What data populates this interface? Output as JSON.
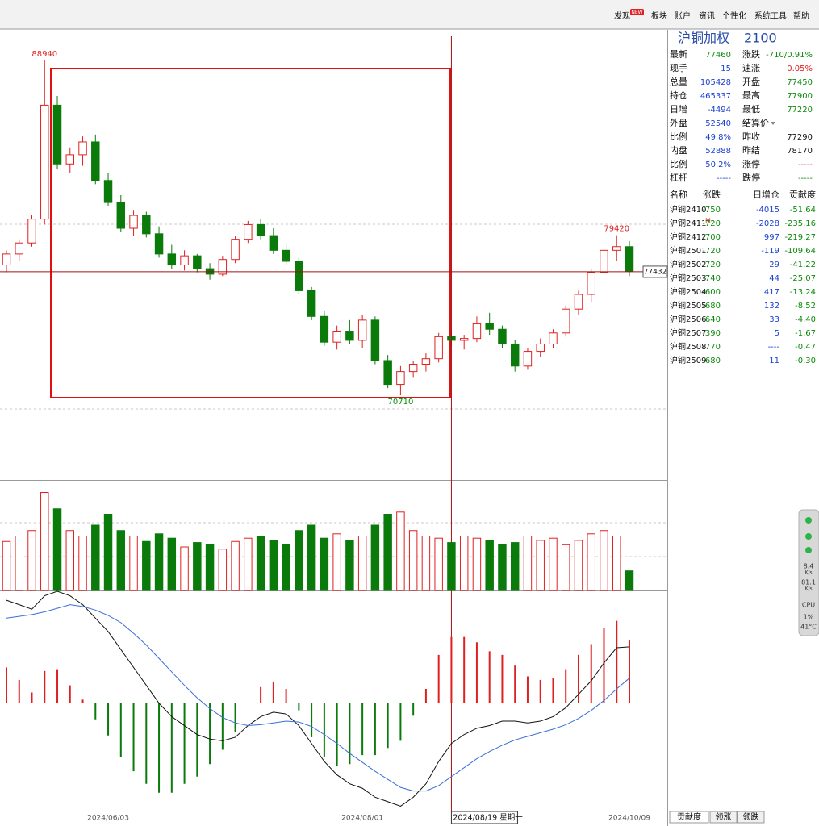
{
  "menu": {
    "items": [
      "发现",
      "板块",
      "账户",
      "资讯",
      "个性化",
      "系统工具",
      "帮助"
    ],
    "badge": "NEW"
  },
  "chart_data": {
    "type": "candlestick",
    "up_color": "#e02020",
    "down_color": "#0a7a0a",
    "ylim": [
      66100,
      90250
    ],
    "candles": [
      [
        77800,
        78600,
        77400,
        78400
      ],
      [
        78400,
        79200,
        78000,
        79000
      ],
      [
        79000,
        80500,
        78800,
        80300
      ],
      [
        80300,
        88940,
        80000,
        86500
      ],
      [
        86500,
        87000,
        83000,
        83300
      ],
      [
        83300,
        84200,
        82800,
        83800
      ],
      [
        83800,
        84800,
        83200,
        84500
      ],
      [
        84500,
        84900,
        82200,
        82400
      ],
      [
        82400,
        82800,
        81000,
        81200
      ],
      [
        81200,
        81600,
        79600,
        79800
      ],
      [
        79800,
        80800,
        79400,
        80500
      ],
      [
        80500,
        80700,
        79300,
        79500
      ],
      [
        79500,
        79900,
        78200,
        78400
      ],
      [
        78400,
        78900,
        77600,
        77800
      ],
      [
        77800,
        78600,
        77500,
        78300
      ],
      [
        78300,
        78400,
        77400,
        77600
      ],
      [
        77600,
        77900,
        77000,
        77300
      ],
      [
        77300,
        78300,
        77200,
        78100
      ],
      [
        78100,
        79400,
        77900,
        79200
      ],
      [
        79200,
        80200,
        79000,
        80000
      ],
      [
        80000,
        80300,
        79200,
        79400
      ],
      [
        79400,
        79800,
        78400,
        78600
      ],
      [
        78600,
        78900,
        77800,
        78000
      ],
      [
        78000,
        78200,
        76200,
        76400
      ],
      [
        76400,
        76600,
        74800,
        75000
      ],
      [
        75000,
        75300,
        73400,
        73600
      ],
      [
        73600,
        74500,
        73200,
        74200
      ],
      [
        74200,
        74800,
        73500,
        73700
      ],
      [
        73700,
        75100,
        73300,
        74800
      ],
      [
        74800,
        75000,
        72400,
        72600
      ],
      [
        72600,
        72900,
        71100,
        71300
      ],
      [
        71300,
        72300,
        70710,
        72000
      ],
      [
        72000,
        72600,
        71700,
        72400
      ],
      [
        72400,
        73000,
        72000,
        72700
      ],
      [
        72700,
        74100,
        72500,
        73900
      ],
      [
        73900,
        74200,
        73400,
        73700
      ],
      [
        73700,
        74000,
        73200,
        73800
      ],
      [
        73800,
        75000,
        73600,
        74600
      ],
      [
        74600,
        75200,
        74000,
        74300
      ],
      [
        74300,
        74500,
        73300,
        73500
      ],
      [
        73500,
        73700,
        72000,
        72300
      ],
      [
        72300,
        73300,
        72100,
        73100
      ],
      [
        73100,
        73800,
        72800,
        73500
      ],
      [
        73500,
        74300,
        73300,
        74100
      ],
      [
        74100,
        75600,
        73900,
        75400
      ],
      [
        75400,
        76400,
        75100,
        76200
      ],
      [
        76200,
        77600,
        75800,
        77400
      ],
      [
        77400,
        78900,
        77200,
        78600
      ],
      [
        78600,
        79420,
        78000,
        78800
      ],
      [
        78800,
        79100,
        77200,
        77460
      ]
    ],
    "categories": [
      null,
      null,
      null,
      null,
      null,
      null,
      null,
      null,
      "2024/06/03",
      null,
      null,
      null,
      null,
      null,
      null,
      null,
      null,
      null,
      null,
      null,
      null,
      null,
      null,
      null,
      null,
      null,
      null,
      null,
      "2024/08/01",
      null,
      null,
      null,
      null,
      null,
      null,
      "2024/08/19 星期一",
      null,
      null,
      null,
      null,
      null,
      null,
      null,
      null,
      null,
      null,
      null,
      null,
      null,
      "2024/10/09"
    ],
    "crosshair": 35,
    "price_labels": [
      88940,
      79420,
      70710
    ],
    "last_price_label": 77432,
    "volume": {
      "ylim": [
        0,
        100
      ],
      "values": [
        45,
        50,
        55,
        90,
        75,
        55,
        50,
        60,
        70,
        55,
        50,
        45,
        52,
        48,
        40,
        44,
        42,
        38,
        45,
        48,
        50,
        46,
        42,
        55,
        60,
        48,
        52,
        46,
        50,
        60,
        70,
        72,
        55,
        50,
        48,
        44,
        50,
        48,
        46,
        42,
        44,
        50,
        46,
        48,
        42,
        46,
        52,
        55,
        50,
        18
      ]
    },
    "macd": {
      "ylim": [
        -1200,
        1250
      ],
      "bars": [
        400,
        260,
        120,
        360,
        380,
        200,
        40,
        -180,
        -360,
        -600,
        -760,
        -900,
        -1000,
        -1000,
        -900,
        -820,
        -680,
        -520,
        -320,
        0,
        180,
        240,
        160,
        -80,
        -380,
        -600,
        -700,
        -680,
        -580,
        -580,
        -500,
        -420,
        -140,
        160,
        540,
        740,
        740,
        680,
        580,
        540,
        420,
        300,
        260,
        280,
        380,
        540,
        660,
        840,
        920,
        700
      ],
      "series": [
        {
          "color": "#111111",
          "values": [
            1150,
            1100,
            1050,
            1200,
            1250,
            1200,
            1100,
            950,
            800,
            600,
            400,
            200,
            0,
            -150,
            -250,
            -350,
            -400,
            -420,
            -380,
            -250,
            -150,
            -100,
            -120,
            -250,
            -450,
            -650,
            -800,
            -900,
            -950,
            -1050,
            -1100,
            -1150,
            -1050,
            -900,
            -650,
            -450,
            -350,
            -280,
            -250,
            -200,
            -200,
            -220,
            -200,
            -150,
            -50,
            100,
            250,
            450,
            620,
            630
          ]
        },
        {
          "color": "#3a6fd8",
          "values": [
            950,
            970,
            990,
            1020,
            1060,
            1100,
            1080,
            1040,
            980,
            900,
            780,
            650,
            500,
            350,
            200,
            60,
            -60,
            -160,
            -220,
            -250,
            -240,
            -220,
            -200,
            -210,
            -260,
            -350,
            -450,
            -560,
            -660,
            -760,
            -850,
            -940,
            -980,
            -980,
            -920,
            -820,
            -720,
            -620,
            -540,
            -470,
            -410,
            -370,
            -330,
            -290,
            -240,
            -170,
            -80,
            30,
            160,
            280
          ]
        }
      ]
    }
  },
  "quote": {
    "title": "沪铜加权",
    "code": "2100",
    "rows": [
      {
        "label": "最新",
        "value": "77460",
        "color": "#0a8a0a",
        "label2": "涨跌",
        "value2": "-710/0.91%",
        "color2": "#0a8a0a"
      },
      {
        "label": "现手",
        "value": "15",
        "color": "#1a3fd0",
        "label2": "速涨",
        "value2": "0.05%",
        "color2": "#e02020"
      },
      {
        "label": "总量",
        "value": "105428",
        "color": "#1a3fd0",
        "label2": "开盘",
        "value2": "77450",
        "color2": "#0a8a0a"
      },
      {
        "label": "持仓",
        "value": "465337",
        "color": "#1a3fd0",
        "label2": "最高",
        "value2": "77900",
        "color2": "#0a8a0a"
      },
      {
        "label": "日增",
        "value": "-4494",
        "color": "#1a3fd0",
        "label2": "最低",
        "value2": "77220",
        "color2": "#0a8a0a"
      },
      {
        "label": "外盘",
        "value": "52540",
        "color": "#1a3fd0",
        "label2": "结算价"
      },
      {
        "label": "比例",
        "value": "49.8%",
        "color": "#1a3fd0",
        "label2": "昨收",
        "value2": "77290",
        "color2": "#111111"
      },
      {
        "label": "内盘",
        "value": "52888",
        "color": "#1a3fd0",
        "label2": "昨结",
        "value2": "78170",
        "color2": "#111111"
      },
      {
        "label": "比例",
        "value": "50.2%",
        "color": "#1a3fd0",
        "label2": "涨停",
        "value2": "-----",
        "color2": "#e02020"
      },
      {
        "label": "杠杆",
        "value": "-----",
        "color": "#1a3fd0",
        "label2": "跌停",
        "value2": "-----",
        "color2": "#0a8a0a"
      }
    ]
  },
  "contracts": {
    "headers": [
      "名称",
      "涨跌",
      "日增仓",
      "贡献度"
    ],
    "colors": {
      "change": "#0a8a0a",
      "oi_change": "#1a3fd0",
      "contribution": "#0a8a0a"
    },
    "rows": [
      {
        "name": "沪铜2410",
        "change": "-750",
        "oi_change": "-4015",
        "contribution": "-51.64"
      },
      {
        "name": "沪铜2411",
        "flag": "M",
        "change": "-720",
        "oi_change": "-2028",
        "contribution": "-235.16"
      },
      {
        "name": "沪铜2412",
        "change": "-700",
        "oi_change": "997",
        "contribution": "-219.27"
      },
      {
        "name": "沪铜2501",
        "change": "-720",
        "oi_change": "-119",
        "contribution": "-109.64"
      },
      {
        "name": "沪铜2502",
        "change": "-720",
        "oi_change": "29",
        "contribution": "-41.22"
      },
      {
        "name": "沪铜2503",
        "change": "-740",
        "oi_change": "44",
        "contribution": "-25.07"
      },
      {
        "name": "沪铜2504",
        "change": "-600",
        "oi_change": "417",
        "contribution": "-13.24"
      },
      {
        "name": "沪铜2505",
        "change": "-680",
        "oi_change": "132",
        "contribution": "-8.52"
      },
      {
        "name": "沪铜2506",
        "change": "-640",
        "oi_change": "33",
        "contribution": "-4.40"
      },
      {
        "name": "沪铜2507",
        "change": "-390",
        "oi_change": "5",
        "contribution": "-1.67"
      },
      {
        "name": "沪铜2508",
        "change": "-770",
        "oi_change": "----",
        "contribution": "-0.47"
      },
      {
        "name": "沪铜2509",
        "change": "-680",
        "oi_change": "11",
        "contribution": "-0.30"
      }
    ]
  },
  "tabs": [
    "贡献度",
    "领涨",
    "领跌"
  ],
  "status_widget": [
    "8.4",
    "K/s",
    "81.1",
    "K/s",
    "CPU",
    "1%",
    "41°C"
  ]
}
